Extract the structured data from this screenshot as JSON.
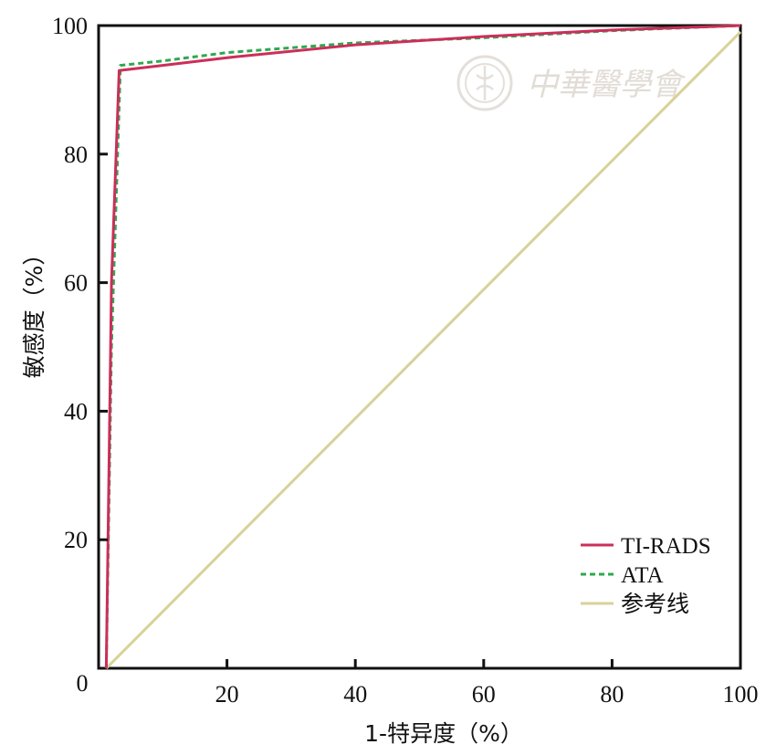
{
  "chart_data": {
    "type": "line",
    "title": "",
    "xlabel": "1-特异度（%）",
    "ylabel": "敏感度（%）",
    "xlim": [
      0,
      100
    ],
    "ylim": [
      0,
      100
    ],
    "x_ticks": [
      "20",
      "40",
      "60",
      "80",
      "100"
    ],
    "y_ticks": [
      "20",
      "40",
      "60",
      "80",
      "100"
    ],
    "origin_label": "0",
    "grid": false,
    "legend_position": "bottom-right",
    "series": [
      {
        "name": "TI-RADS",
        "color": "#cc2e5a",
        "style": "solid",
        "x": [
          1.2,
          2.0,
          3.2,
          10,
          20,
          40,
          60,
          80,
          100
        ],
        "y": [
          0,
          60,
          93,
          93.8,
          95,
          97,
          98.3,
          99.3,
          100
        ]
      },
      {
        "name": "ATA",
        "color": "#2fa84f",
        "style": "dashed",
        "x": [
          1.2,
          2.0,
          3.4,
          10,
          20,
          40,
          60,
          80,
          100
        ],
        "y": [
          0,
          50,
          93.8,
          94.5,
          95.8,
          97.3,
          98.1,
          99.2,
          100
        ]
      },
      {
        "name": "参考线",
        "color": "#d9d199",
        "style": "solid",
        "x": [
          1.2,
          100
        ],
        "y": [
          0,
          99
        ]
      }
    ]
  },
  "watermark": {
    "text": "中華醫學會",
    "icon": "caduceus-seal-icon"
  }
}
